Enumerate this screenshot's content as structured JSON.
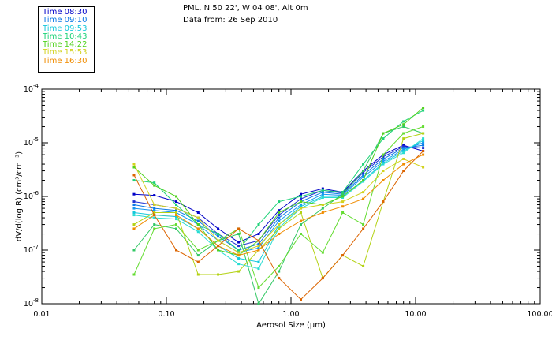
{
  "header": {
    "location": "PML, N 50 22', W 04 08', Alt 0m",
    "date_line": "Data from: 26 Sep 2010"
  },
  "legend": [
    {
      "label": "Time 08:30",
      "color": "#0000c8"
    },
    {
      "label": "Time 09:10",
      "color": "#0a78e6"
    },
    {
      "label": "Time 09:53",
      "color": "#14c8dc"
    },
    {
      "label": "Time 10:43",
      "color": "#1ed278"
    },
    {
      "label": "Time 14:22",
      "color": "#50d21e"
    },
    {
      "label": "Time 15:53",
      "color": "#d2d21e"
    },
    {
      "label": "Time 16:30",
      "color": "#f08c00"
    }
  ],
  "chart_data": {
    "type": "line",
    "xscale": "log",
    "yscale": "log",
    "xlabel": "Aerosol Size (μm)",
    "ylabel": "dV/d(log R) (cm³/cm⁻³)",
    "xlim": [
      0.01,
      100
    ],
    "ylim": [
      1e-08,
      0.0001
    ],
    "x_tick_labels": [
      "0.01",
      "0.10",
      "1.00",
      "10.00",
      "100.00"
    ],
    "y_tick_labels": [
      {
        "base": "10",
        "exp": "-4"
      },
      {
        "base": "10",
        "exp": "-5"
      },
      {
        "base": "10",
        "exp": "-6"
      },
      {
        "base": "10",
        "exp": "-7"
      },
      {
        "base": "10",
        "exp": "-8"
      }
    ],
    "x": [
      0.055,
      0.08,
      0.12,
      0.18,
      0.26,
      0.38,
      0.55,
      0.8,
      1.2,
      1.8,
      2.6,
      3.8,
      5.5,
      8.0,
      11.5
    ],
    "series": [
      {
        "name": "Time 08:30",
        "color": "#0000c8",
        "values": [
          1.1e-06,
          1.05e-06,
          8e-07,
          5e-07,
          2.5e-07,
          1.4e-07,
          2e-07,
          5.5e-07,
          1.1e-06,
          1.4e-06,
          1.2e-06,
          3e-06,
          6e-06,
          9e-06,
          7e-06
        ]
      },
      {
        "name": "Time 08:30",
        "color": "#1e32d2",
        "values": [
          8e-07,
          7e-07,
          6e-07,
          4e-07,
          2e-07,
          1.2e-07,
          1.5e-07,
          4.5e-07,
          9e-07,
          1.3e-06,
          1.15e-06,
          2.8e-06,
          5.5e-06,
          8.5e-06,
          8e-06
        ]
      },
      {
        "name": "Time 09:10",
        "color": "#0a78e6",
        "values": [
          7e-07,
          6e-07,
          5.5e-07,
          3.5e-07,
          1.8e-07,
          1e-07,
          1.3e-07,
          4e-07,
          8e-07,
          1.2e-06,
          1.1e-06,
          2.5e-06,
          5e-06,
          8e-06,
          9e-06
        ]
      },
      {
        "name": "Time 09:10",
        "color": "#1496f0",
        "values": [
          6e-07,
          5.5e-07,
          5e-07,
          3e-07,
          1.5e-07,
          9e-08,
          1.1e-07,
          3.5e-07,
          7e-07,
          1.1e-06,
          1.05e-06,
          2.3e-06,
          4.5e-06,
          7.5e-06,
          1e-05
        ]
      },
      {
        "name": "Time 09:53",
        "color": "#14c8dc",
        "values": [
          5e-07,
          4.5e-07,
          4.2e-07,
          2.5e-07,
          1.2e-07,
          7e-08,
          6e-08,
          3e-07,
          6.5e-07,
          1e-06,
          1e-06,
          2e-06,
          4.2e-06,
          7e-06,
          1.1e-05
        ]
      },
      {
        "name": "Time 09:53",
        "color": "#28dcd2",
        "values": [
          4.5e-07,
          4e-07,
          3.8e-07,
          2.2e-07,
          1e-07,
          5.5e-08,
          4.5e-08,
          2.6e-07,
          6e-07,
          9.5e-07,
          9.5e-07,
          1.9e-06,
          4e-06,
          6.5e-06,
          1.2e-05
        ]
      },
      {
        "name": "Time 10:43",
        "color": "#1ed278",
        "values": [
          2e-06,
          1.8e-06,
          7e-07,
          3e-07,
          2e-07,
          1e-07,
          3e-07,
          8e-07,
          1e-06,
          1.3e-06,
          1.2e-06,
          4e-06,
          1.2e-05,
          2.5e-05,
          4e-05
        ]
      },
      {
        "name": "Time 10:43",
        "color": "#32c864",
        "values": [
          1e-07,
          3e-07,
          2.5e-07,
          8e-08,
          1.5e-07,
          2e-07,
          1e-08,
          4e-08,
          3e-07,
          6e-07,
          1.1e-06,
          3e-06,
          1.5e-05,
          2e-05,
          1.5e-05
        ]
      },
      {
        "name": "Time 14:22",
        "color": "#50d21e",
        "values": [
          3.5e-06,
          1.6e-06,
          1e-06,
          3e-07,
          1e-07,
          8e-08,
          1.5e-07,
          5e-07,
          8e-07,
          7e-07,
          1e-06,
          2e-06,
          1.5e-05,
          2.2e-05,
          4.5e-05
        ]
      },
      {
        "name": "Time 14:22",
        "color": "#64dc32",
        "values": [
          3.5e-08,
          2.5e-07,
          3e-07,
          1e-07,
          1.5e-07,
          2.5e-07,
          2e-08,
          5e-08,
          2e-07,
          9e-08,
          5e-07,
          3e-07,
          6e-06,
          1.5e-05,
          2e-05
        ]
      },
      {
        "name": "Time 15:53",
        "color": "#d2d21e",
        "values": [
          4e-06,
          7e-07,
          6e-07,
          4e-07,
          1.5e-07,
          9e-08,
          1.2e-07,
          3e-07,
          6e-07,
          7e-07,
          8e-07,
          1.2e-06,
          3e-06,
          5e-06,
          3.5e-06
        ]
      },
      {
        "name": "Time 15:53",
        "color": "#b4d214",
        "values": [
          3e-07,
          5e-07,
          5e-07,
          3.5e-08,
          3.5e-08,
          4e-08,
          1e-07,
          2.5e-07,
          5e-07,
          3e-08,
          8e-08,
          5e-08,
          8e-07,
          1.2e-05,
          1.5e-05
        ]
      },
      {
        "name": "Time 16:30",
        "color": "#f08c00",
        "values": [
          2.5e-07,
          4.5e-07,
          4.5e-07,
          2.5e-07,
          1.2e-07,
          8e-08,
          1e-07,
          2e-07,
          3.5e-07,
          5e-07,
          6.5e-07,
          9e-07,
          2e-06,
          4e-06,
          6e-06
        ]
      },
      {
        "name": "Time 16:30",
        "color": "#dc6400",
        "values": [
          2.5e-06,
          4.5e-07,
          1e-07,
          6e-08,
          1.2e-07,
          2.5e-07,
          1.5e-07,
          3e-08,
          1.2e-08,
          3e-08,
          8e-08,
          2.5e-07,
          8e-07,
          3e-06,
          7e-06
        ]
      }
    ]
  }
}
